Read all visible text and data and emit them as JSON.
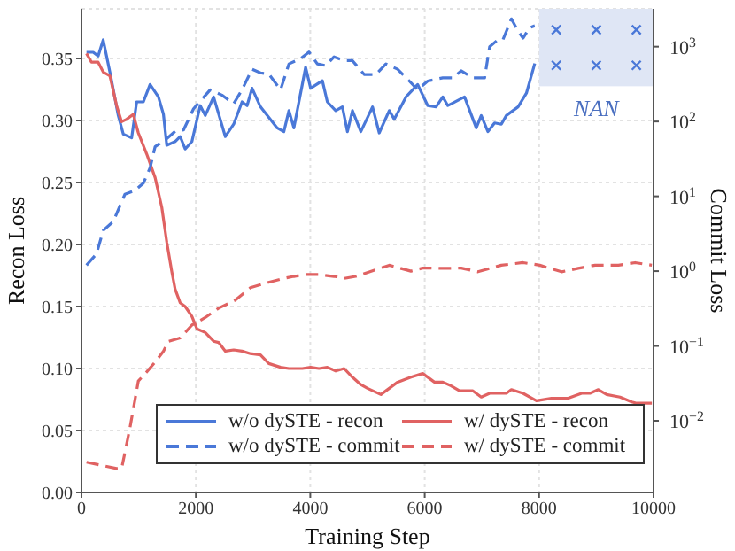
{
  "chart_data": {
    "type": "line",
    "xlabel": "Training Step",
    "ylabel": "Recon Loss",
    "y2label": "Commit Loss",
    "xlim": [
      0,
      10000
    ],
    "xticks": [
      0,
      2000,
      4000,
      6000,
      8000,
      10000
    ],
    "ylim": [
      0,
      0.39
    ],
    "yticks": [
      {
        "value": 0,
        "label": "0.00"
      },
      {
        "value": 0.05,
        "label": "0.05"
      },
      {
        "value": 0.1,
        "label": "0.10"
      },
      {
        "value": 0.15,
        "label": "0.15"
      },
      {
        "value": 0.2,
        "label": "0.20"
      },
      {
        "value": 0.25,
        "label": "0.25"
      },
      {
        "value": 0.3,
        "label": "0.30"
      },
      {
        "value": 0.35,
        "label": "0.35"
      }
    ],
    "y2lim": [
      0.0011,
      3200
    ],
    "y2ticks": [
      {
        "value": 0.01,
        "label": "10$^{−2}$"
      },
      {
        "value": 0.1,
        "label": "10$^{−1}$"
      },
      {
        "value": 1,
        "label": "10$^{0}$"
      },
      {
        "value": 10,
        "label": "10$^{1}$"
      },
      {
        "value": 100,
        "label": "10$^{2}$"
      },
      {
        "value": 1000,
        "label": "10$^{3}$"
      }
    ],
    "log": "y2",
    "grid": true,
    "legend": "bottom",
    "marker": "none",
    "bands": [
      {
        "axis": "x",
        "from": 8000,
        "to": 10000,
        "label": "NAN",
        "color": "#dfe6f5"
      }
    ],
    "series": [
      {
        "name": "w/o dySTE - recon",
        "color": "#4a78d8",
        "line_style": "solid",
        "x": [
          88,
          205,
          292,
          380,
          497,
          643,
          731,
          877,
          965,
          1082,
          1199,
          1345,
          1433,
          1491,
          1637,
          1725,
          1813,
          1930,
          2076,
          2164,
          2310,
          2515,
          2661,
          2807,
          2895,
          2982,
          3129,
          3421,
          3538,
          3626,
          3713,
          3860,
          3918,
          4006,
          4211,
          4298,
          4444,
          4561,
          4649,
          4737,
          4883,
          5088,
          5205,
          5380,
          5468,
          5673,
          5877,
          6053,
          6199,
          6316,
          6404,
          6696,
          6901,
          6988,
          7105,
          7222,
          7339,
          7427,
          7632,
          7778,
          7924
        ],
        "values": [
          0.355,
          0.355,
          0.352,
          0.365,
          0.339,
          0.304,
          0.289,
          0.286,
          0.315,
          0.315,
          0.329,
          0.319,
          0.305,
          0.28,
          0.283,
          0.287,
          0.277,
          0.283,
          0.312,
          0.304,
          0.319,
          0.287,
          0.297,
          0.315,
          0.312,
          0.326,
          0.311,
          0.294,
          0.291,
          0.308,
          0.294,
          0.329,
          0.343,
          0.326,
          0.332,
          0.315,
          0.308,
          0.311,
          0.291,
          0.308,
          0.291,
          0.311,
          0.29,
          0.308,
          0.301,
          0.319,
          0.329,
          0.312,
          0.311,
          0.319,
          0.312,
          0.319,
          0.294,
          0.304,
          0.291,
          0.298,
          0.297,
          0.304,
          0.311,
          0.322,
          0.346
        ]
      },
      {
        "name": "w/ dySTE - recon",
        "color": "#e06262",
        "line_style": "solid",
        "x": [
          88,
          175,
          292,
          380,
          497,
          614,
          702,
          789,
          906,
          994,
          1140,
          1287,
          1404,
          1491,
          1579,
          1637,
          1725,
          1813,
          1930,
          2018,
          2164,
          2310,
          2398,
          2515,
          2661,
          2807,
          2953,
          3129,
          3275,
          3480,
          3626,
          3860,
          4006,
          4152,
          4298,
          4444,
          4591,
          4737,
          4883,
          5000,
          5234,
          5526,
          5760,
          5965,
          6170,
          6316,
          6462,
          6608,
          6842,
          6988,
          7135,
          7427,
          7515,
          7719,
          7953,
          8216,
          8509,
          8743,
          8889,
          9035,
          9181,
          9415,
          9620,
          9708,
          9971
        ],
        "values": [
          0.354,
          0.347,
          0.347,
          0.339,
          0.336,
          0.312,
          0.299,
          0.301,
          0.305,
          0.29,
          0.273,
          0.254,
          0.23,
          0.202,
          0.178,
          0.164,
          0.153,
          0.15,
          0.142,
          0.132,
          0.129,
          0.122,
          0.121,
          0.114,
          0.115,
          0.114,
          0.112,
          0.111,
          0.104,
          0.101,
          0.1,
          0.1,
          0.101,
          0.1,
          0.101,
          0.098,
          0.1,
          0.093,
          0.087,
          0.084,
          0.079,
          0.089,
          0.093,
          0.096,
          0.089,
          0.089,
          0.086,
          0.082,
          0.082,
          0.077,
          0.08,
          0.08,
          0.083,
          0.08,
          0.074,
          0.076,
          0.076,
          0.08,
          0.08,
          0.083,
          0.079,
          0.077,
          0.073,
          0.072,
          0.072
        ]
      },
      {
        "name": "w/o dySTE - commit",
        "color": "#4a78d8",
        "line_style": "dashed",
        "axis": "y2",
        "x": [
          88,
          263,
          380,
          556,
          760,
          936,
          1082,
          1199,
          1287,
          1491,
          1637,
          1784,
          1959,
          2251,
          2456,
          2661,
          2807,
          2982,
          3129,
          3275,
          3480,
          3626,
          3830,
          3977,
          4123,
          4269,
          4415,
          4591,
          4737,
          4942,
          5146,
          5322,
          5526,
          5731,
          5877,
          6053,
          6316,
          6491,
          6637,
          6842,
          7047,
          7135,
          7281,
          7368,
          7515,
          7632,
          7719,
          7836,
          7924
        ],
        "values": [
          1.2,
          1.7,
          3.5,
          4.6,
          10.7,
          12,
          15,
          24,
          46,
          59,
          74,
          77,
          148,
          265,
          225,
          173,
          265,
          500,
          447,
          430,
          265,
          588,
          690,
          850,
          588,
          560,
          730,
          650,
          650,
          425,
          425,
          588,
          500,
          347,
          265,
          347,
          383,
          383,
          476,
          383,
          383,
          1000,
          1240,
          1240,
          2350,
          1620,
          1300,
          1800,
          1900
        ]
      },
      {
        "name": "w/ dySTE - commit",
        "color": "#e06262",
        "line_style": "dashed",
        "axis": "y2",
        "x": [
          88,
          614,
          702,
          848,
          994,
          1140,
          1287,
          1433,
          1520,
          1725,
          1930,
          2164,
          2398,
          2690,
          2953,
          3246,
          3538,
          3713,
          3918,
          4152,
          4415,
          4591,
          4795,
          5380,
          5760,
          5965,
          6345,
          6637,
          6930,
          7339,
          7719,
          8012,
          8392,
          8684,
          8977,
          9386,
          9678,
          9971
        ],
        "values": [
          0.0028,
          0.0023,
          0.0023,
          0.0081,
          0.034,
          0.045,
          0.061,
          0.085,
          0.115,
          0.128,
          0.19,
          0.24,
          0.32,
          0.41,
          0.6,
          0.7,
          0.8,
          0.85,
          0.9,
          0.9,
          0.85,
          0.8,
          0.85,
          1.2,
          1.0,
          1.1,
          1.09,
          1.1,
          0.98,
          1.2,
          1.3,
          1.2,
          0.98,
          1.09,
          1.2,
          1.2,
          1.3,
          1.2
        ]
      }
    ]
  }
}
